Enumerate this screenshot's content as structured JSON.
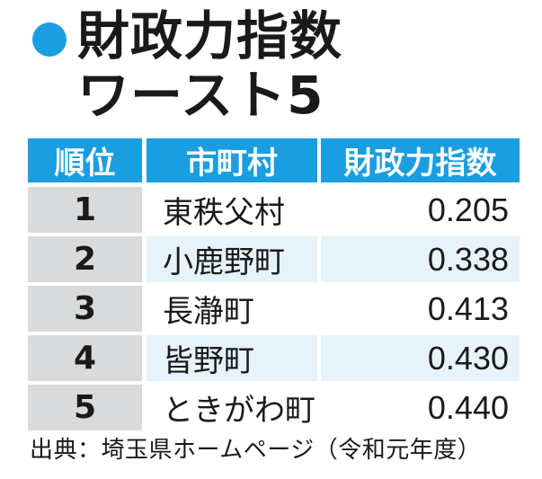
{
  "title": {
    "line1": "財政力指数",
    "line2": "ワースト5",
    "accent_color": "#1a9ee0"
  },
  "table": {
    "headers": [
      "順位",
      "市町村",
      "財政力指数"
    ],
    "rows": [
      {
        "rank": "1",
        "municipality": "東秩父村",
        "index": "0.205"
      },
      {
        "rank": "2",
        "municipality": "小鹿野町",
        "index": "0.338"
      },
      {
        "rank": "3",
        "municipality": "長瀞町",
        "index": "0.413"
      },
      {
        "rank": "4",
        "municipality": "皆野町",
        "index": "0.430"
      },
      {
        "rank": "5",
        "municipality": "ときがわ町",
        "index": "0.440"
      }
    ],
    "header_color": "#1a9ee0",
    "rank_cell_color": "#d9dadb",
    "alt_row_color": "#e6f3fb"
  },
  "source": "出典：埼玉県ホームページ（令和元年度）"
}
